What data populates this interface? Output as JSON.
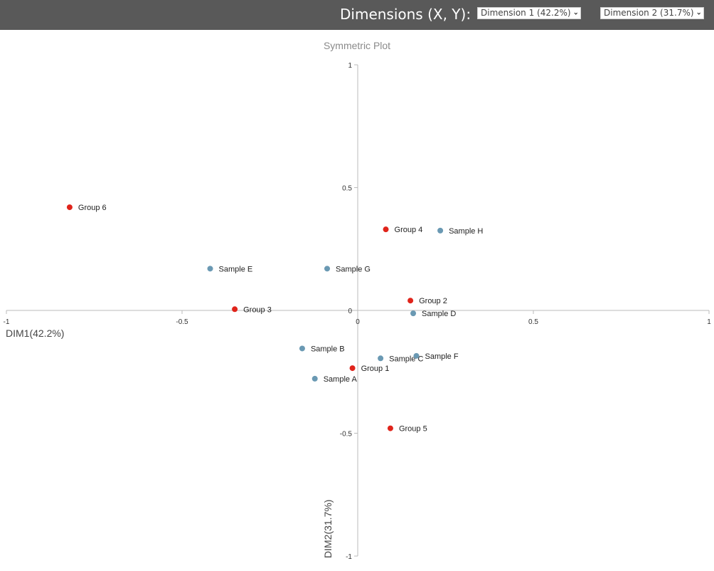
{
  "header": {
    "label": "Dimensions (X, Y):",
    "x_select": "Dimension 1 (42.2%)",
    "y_select": "Dimension 2 (31.7%)"
  },
  "colors": {
    "group": "#e0241b",
    "sample": "#6a99b3",
    "axis": "#bbbbbb",
    "header_bg": "#595959"
  },
  "icons": {
    "dropdown": "chevron-down-icon"
  },
  "chart_data": {
    "type": "scatter",
    "title": "Symmetric Plot",
    "xlabel": "DIM1(42.2%)",
    "ylabel": "DIM2(31.7%)",
    "xlim": [
      -1,
      1
    ],
    "ylim": [
      -1,
      1
    ],
    "xticks": [
      "-1",
      "-0.5",
      "0",
      "0.5",
      "1"
    ],
    "yticks": [
      "1",
      "0.5",
      "0",
      "-0.5",
      "-1"
    ],
    "grid": false,
    "series": [
      {
        "kind": "group",
        "points": [
          {
            "label": "Group 6",
            "x": -0.82,
            "y": 0.42
          },
          {
            "label": "Group 4",
            "x": 0.08,
            "y": 0.33
          },
          {
            "label": "Group 2",
            "x": 0.15,
            "y": 0.04
          },
          {
            "label": "Group 3",
            "x": -0.35,
            "y": 0.005
          },
          {
            "label": "Group 1",
            "x": -0.015,
            "y": -0.235
          },
          {
            "label": "Group 5",
            "x": 0.093,
            "y": -0.48
          }
        ]
      },
      {
        "kind": "sample",
        "points": [
          {
            "label": "Sample H",
            "x": 0.235,
            "y": 0.325
          },
          {
            "label": "Sample E",
            "x": -0.42,
            "y": 0.17
          },
          {
            "label": "Sample G",
            "x": -0.087,
            "y": 0.17
          },
          {
            "label": "Sample D",
            "x": 0.158,
            "y": -0.012
          },
          {
            "label": "Sample B",
            "x": -0.158,
            "y": -0.155
          },
          {
            "label": "Sample C",
            "x": 0.065,
            "y": -0.195
          },
          {
            "label": "Sample F",
            "x": 0.167,
            "y": -0.185
          },
          {
            "label": "Sample A",
            "x": -0.122,
            "y": -0.278
          }
        ]
      }
    ]
  }
}
